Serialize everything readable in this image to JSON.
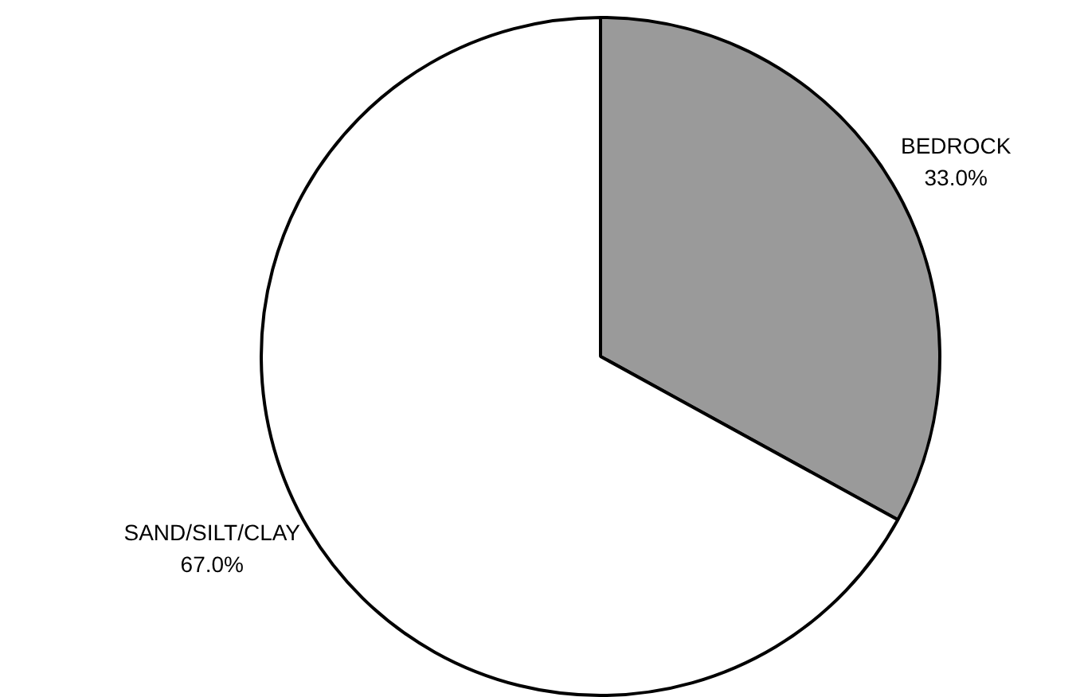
{
  "chart_data": {
    "type": "pie",
    "categories": [
      "BEDROCK",
      "SAND/SILT/CLAY"
    ],
    "values": [
      33.0,
      67.0
    ],
    "colors": [
      "#9a9a9a",
      "#ffffff"
    ],
    "value_labels": [
      "33.0%",
      "67.0%"
    ],
    "legend": false
  }
}
